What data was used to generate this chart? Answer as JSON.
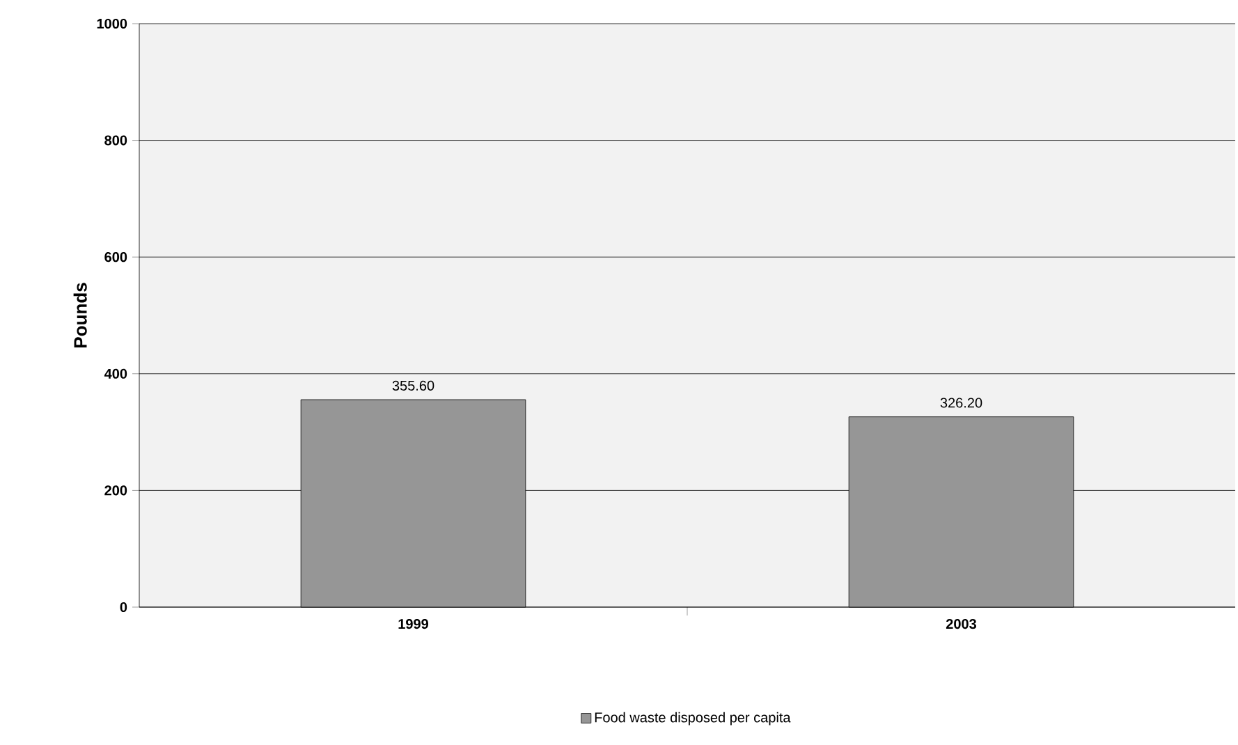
{
  "chart_data": {
    "type": "bar",
    "ylabel": "Pounds",
    "categories": [
      "1999",
      "2003"
    ],
    "series": [
      {
        "name": "Food waste disposed per capita",
        "color": "#969696",
        "values": [
          355.6,
          326.2
        ],
        "value_labels": [
          "355.60",
          "326.20"
        ]
      }
    ],
    "ylim": [
      0,
      1000
    ],
    "yticks": [
      0,
      200,
      400,
      600,
      800,
      1000
    ],
    "grid": "y",
    "legend": "bottom"
  }
}
